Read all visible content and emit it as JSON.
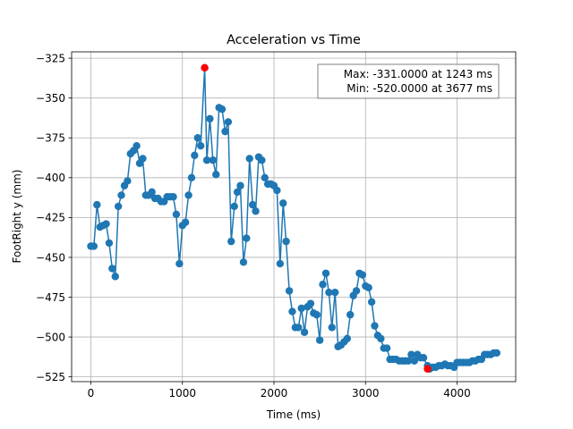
{
  "chart_data": {
    "type": "line",
    "title": "Acceleration vs Time",
    "xlabel": "Time (ms)",
    "ylabel": "FootRight y (mm)",
    "xlim": [
      -210,
      4640
    ],
    "ylim": [
      -528,
      -321
    ],
    "xticks": [
      0,
      1000,
      2000,
      3000,
      4000
    ],
    "xtick_labels": [
      "0",
      "1000",
      "2000",
      "3000",
      "4000"
    ],
    "yticks": [
      -325,
      -350,
      -375,
      -400,
      -425,
      -450,
      -475,
      -500,
      -525
    ],
    "ytick_labels": [
      "−325",
      "−350",
      "−375",
      "−400",
      "−425",
      "−450",
      "−475",
      "−500",
      "−525"
    ],
    "grid": true,
    "colors": {
      "line": "#1f77b4",
      "extreme": "#ff0000"
    },
    "series": [
      {
        "x": [
          0,
          33,
          67,
          100,
          133,
          167,
          200,
          233,
          267,
          300,
          333,
          367,
          400,
          433,
          467,
          500,
          533,
          567,
          600,
          633,
          667,
          700,
          733,
          767,
          800,
          833,
          867,
          900,
          933,
          967,
          1000,
          1033,
          1067,
          1100,
          1133,
          1167,
          1200,
          1243,
          1267,
          1300,
          1333,
          1367,
          1400,
          1433,
          1467,
          1500,
          1533,
          1567,
          1600,
          1633,
          1667,
          1700,
          1733,
          1767,
          1800,
          1833,
          1867,
          1900,
          1933,
          1967,
          2000,
          2033,
          2067,
          2100,
          2133,
          2167,
          2200,
          2233,
          2267,
          2300,
          2333,
          2367,
          2400,
          2433,
          2467,
          2500,
          2533,
          2567,
          2600,
          2633,
          2667,
          2700,
          2733,
          2767,
          2800,
          2833,
          2867,
          2900,
          2933,
          2967,
          3000,
          3033,
          3067,
          3100,
          3133,
          3167,
          3200,
          3233,
          3267,
          3300,
          3333,
          3367,
          3400,
          3433,
          3467,
          3500,
          3533,
          3567,
          3600,
          3633,
          3677,
          3700,
          3733,
          3767,
          3800,
          3833,
          3867,
          3900,
          3933,
          3967,
          4000,
          4033,
          4067,
          4100,
          4133,
          4167,
          4200,
          4233,
          4267,
          4300,
          4333,
          4367,
          4400,
          4433
        ],
        "y": [
          -443,
          -443,
          -417,
          -431,
          -430,
          -429,
          -441,
          -457,
          -462,
          -418,
          -411,
          -405,
          -402,
          -385,
          -383,
          -380,
          -391,
          -388,
          -411,
          -411,
          -409,
          -413,
          -413,
          -415,
          -415,
          -412,
          -412,
          -412,
          -423,
          -454,
          -430,
          -428,
          -411,
          -400,
          -386,
          -375,
          -380,
          -331,
          -389,
          -363,
          -389,
          -398,
          -356,
          -357,
          -371,
          -365,
          -440,
          -418,
          -409,
          -405,
          -453,
          -438,
          -388,
          -417,
          -421,
          -387,
          -389,
          -400,
          -404,
          -404,
          -405,
          -408,
          -454,
          -416,
          -440,
          -471,
          -484,
          -494,
          -494,
          -482,
          -497,
          -481,
          -479,
          -485,
          -486,
          -502,
          -467,
          -460,
          -472,
          -494,
          -472,
          -506,
          -505,
          -503,
          -501,
          -486,
          -474,
          -471,
          -460,
          -461,
          -468,
          -469,
          -478,
          -493,
          -499,
          -501,
          -507,
          -507,
          -514,
          -514,
          -514,
          -515,
          -515,
          -515,
          -515,
          -511,
          -515,
          -511,
          -513,
          -513,
          -518,
          -520,
          -519,
          -519,
          -518,
          -518,
          -517,
          -518,
          -518,
          -519,
          -516,
          -516,
          -516,
          -516,
          -516,
          -515,
          -515,
          -514,
          -514,
          -511,
          -511,
          -511,
          -510,
          -510
        ]
      }
    ],
    "extremes": [
      {
        "label": "max",
        "x": 1243,
        "y": -331
      },
      {
        "label": "min",
        "x": 3677,
        "y": -520
      }
    ],
    "annotation": {
      "line1": "Max: -331.0000 at 1243 ms",
      "line2": "Min: -520.0000 at 3677 ms"
    }
  }
}
